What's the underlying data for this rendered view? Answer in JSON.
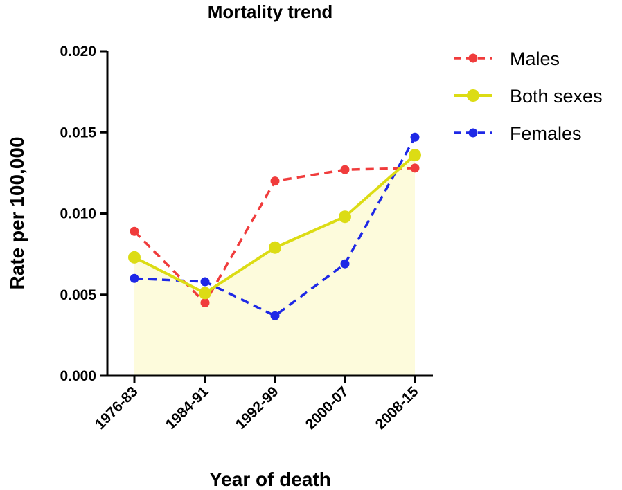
{
  "chart_data": {
    "type": "line",
    "title": "Mortality trend",
    "xlabel": "Year of death",
    "ylabel": "Rate per 100,000",
    "categories": [
      "1976-83",
      "1984-91",
      "1992-99",
      "2000-07",
      "2008-15"
    ],
    "ylim": [
      0,
      0.02
    ],
    "yticks": [
      "0.000",
      "0.005",
      "0.010",
      "0.015",
      "0.020"
    ],
    "yticks_values": [
      0,
      0.005,
      0.01,
      0.015,
      0.02
    ],
    "legend_position": "top-right",
    "series": [
      {
        "name": "Males",
        "values": [
          0.0089,
          0.0045,
          0.012,
          0.0127,
          0.0128
        ],
        "color": "#f03c3c",
        "style": "dashed",
        "marker": "small"
      },
      {
        "name": "Both sexes",
        "values": [
          0.0073,
          0.0051,
          0.0079,
          0.0098,
          0.0136
        ],
        "color": "#dcdc14",
        "style": "solid",
        "marker": "large",
        "fill": "#fdfbdc"
      },
      {
        "name": "Females",
        "values": [
          0.006,
          0.0058,
          0.0037,
          0.0069,
          0.0147
        ],
        "color": "#1e28e6",
        "style": "dashed",
        "marker": "small"
      }
    ]
  }
}
